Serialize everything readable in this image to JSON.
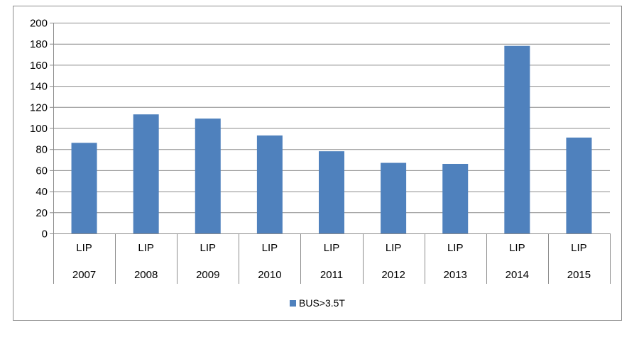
{
  "chart_data": {
    "type": "bar",
    "categories": [
      [
        "LIP",
        "2007"
      ],
      [
        "LIP",
        "2008"
      ],
      [
        "LIP",
        "2009"
      ],
      [
        "LIP",
        "2010"
      ],
      [
        "LIP",
        "2011"
      ],
      [
        "LIP",
        "2012"
      ],
      [
        "LIP",
        "2013"
      ],
      [
        "LIP",
        "2014"
      ],
      [
        "LIP",
        "2015"
      ]
    ],
    "series": [
      {
        "name": "BUS>3.5T",
        "values": [
          86,
          113,
          109,
          93,
          78,
          67,
          66,
          178,
          91
        ],
        "color": "#4f81bd"
      }
    ],
    "title": "",
    "xlabel": "",
    "ylabel": "",
    "ylim": [
      0,
      200
    ],
    "yticks": [
      0,
      20,
      40,
      60,
      80,
      100,
      120,
      140,
      160,
      180,
      200
    ],
    "grid": true,
    "legend_position": "bottom"
  }
}
